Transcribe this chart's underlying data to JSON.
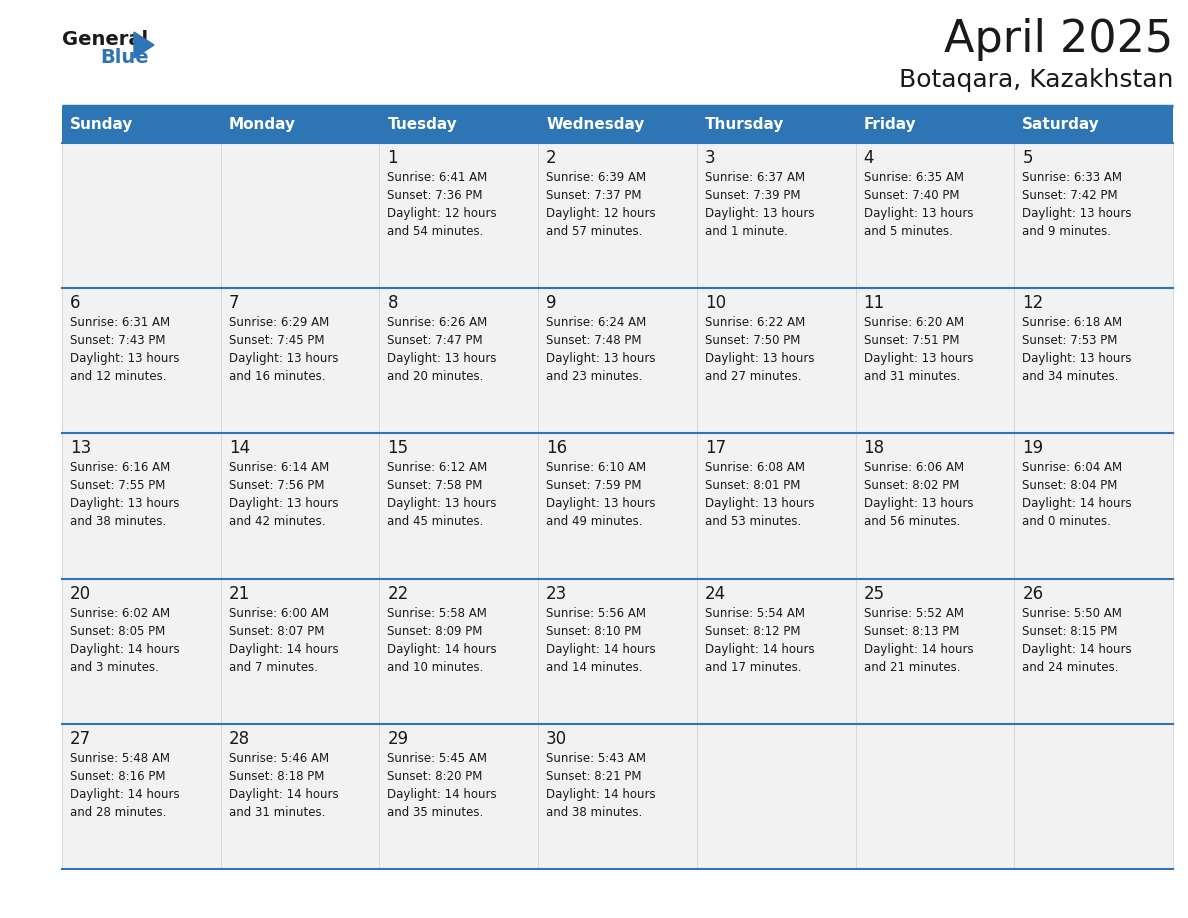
{
  "title": "April 2025",
  "subtitle": "Botaqara, Kazakhstan",
  "days_of_week": [
    "Sunday",
    "Monday",
    "Tuesday",
    "Wednesday",
    "Thursday",
    "Friday",
    "Saturday"
  ],
  "header_bg": "#2E75B6",
  "header_text": "#FFFFFF",
  "cell_bg": "#F2F2F2",
  "cell_bg_white": "#FFFFFF",
  "border_color": "#2E75B6",
  "day_num_color": "#1a1a1a",
  "cell_text_color": "#1a1a1a",
  "weeks": [
    [
      {
        "day": "",
        "sunrise": "",
        "sunset": "",
        "daylight": ""
      },
      {
        "day": "",
        "sunrise": "",
        "sunset": "",
        "daylight": ""
      },
      {
        "day": "1",
        "sunrise": "Sunrise: 6:41 AM",
        "sunset": "Sunset: 7:36 PM",
        "daylight": "Daylight: 12 hours\nand 54 minutes."
      },
      {
        "day": "2",
        "sunrise": "Sunrise: 6:39 AM",
        "sunset": "Sunset: 7:37 PM",
        "daylight": "Daylight: 12 hours\nand 57 minutes."
      },
      {
        "day": "3",
        "sunrise": "Sunrise: 6:37 AM",
        "sunset": "Sunset: 7:39 PM",
        "daylight": "Daylight: 13 hours\nand 1 minute."
      },
      {
        "day": "4",
        "sunrise": "Sunrise: 6:35 AM",
        "sunset": "Sunset: 7:40 PM",
        "daylight": "Daylight: 13 hours\nand 5 minutes."
      },
      {
        "day": "5",
        "sunrise": "Sunrise: 6:33 AM",
        "sunset": "Sunset: 7:42 PM",
        "daylight": "Daylight: 13 hours\nand 9 minutes."
      }
    ],
    [
      {
        "day": "6",
        "sunrise": "Sunrise: 6:31 AM",
        "sunset": "Sunset: 7:43 PM",
        "daylight": "Daylight: 13 hours\nand 12 minutes."
      },
      {
        "day": "7",
        "sunrise": "Sunrise: 6:29 AM",
        "sunset": "Sunset: 7:45 PM",
        "daylight": "Daylight: 13 hours\nand 16 minutes."
      },
      {
        "day": "8",
        "sunrise": "Sunrise: 6:26 AM",
        "sunset": "Sunset: 7:47 PM",
        "daylight": "Daylight: 13 hours\nand 20 minutes."
      },
      {
        "day": "9",
        "sunrise": "Sunrise: 6:24 AM",
        "sunset": "Sunset: 7:48 PM",
        "daylight": "Daylight: 13 hours\nand 23 minutes."
      },
      {
        "day": "10",
        "sunrise": "Sunrise: 6:22 AM",
        "sunset": "Sunset: 7:50 PM",
        "daylight": "Daylight: 13 hours\nand 27 minutes."
      },
      {
        "day": "11",
        "sunrise": "Sunrise: 6:20 AM",
        "sunset": "Sunset: 7:51 PM",
        "daylight": "Daylight: 13 hours\nand 31 minutes."
      },
      {
        "day": "12",
        "sunrise": "Sunrise: 6:18 AM",
        "sunset": "Sunset: 7:53 PM",
        "daylight": "Daylight: 13 hours\nand 34 minutes."
      }
    ],
    [
      {
        "day": "13",
        "sunrise": "Sunrise: 6:16 AM",
        "sunset": "Sunset: 7:55 PM",
        "daylight": "Daylight: 13 hours\nand 38 minutes."
      },
      {
        "day": "14",
        "sunrise": "Sunrise: 6:14 AM",
        "sunset": "Sunset: 7:56 PM",
        "daylight": "Daylight: 13 hours\nand 42 minutes."
      },
      {
        "day": "15",
        "sunrise": "Sunrise: 6:12 AM",
        "sunset": "Sunset: 7:58 PM",
        "daylight": "Daylight: 13 hours\nand 45 minutes."
      },
      {
        "day": "16",
        "sunrise": "Sunrise: 6:10 AM",
        "sunset": "Sunset: 7:59 PM",
        "daylight": "Daylight: 13 hours\nand 49 minutes."
      },
      {
        "day": "17",
        "sunrise": "Sunrise: 6:08 AM",
        "sunset": "Sunset: 8:01 PM",
        "daylight": "Daylight: 13 hours\nand 53 minutes."
      },
      {
        "day": "18",
        "sunrise": "Sunrise: 6:06 AM",
        "sunset": "Sunset: 8:02 PM",
        "daylight": "Daylight: 13 hours\nand 56 minutes."
      },
      {
        "day": "19",
        "sunrise": "Sunrise: 6:04 AM",
        "sunset": "Sunset: 8:04 PM",
        "daylight": "Daylight: 14 hours\nand 0 minutes."
      }
    ],
    [
      {
        "day": "20",
        "sunrise": "Sunrise: 6:02 AM",
        "sunset": "Sunset: 8:05 PM",
        "daylight": "Daylight: 14 hours\nand 3 minutes."
      },
      {
        "day": "21",
        "sunrise": "Sunrise: 6:00 AM",
        "sunset": "Sunset: 8:07 PM",
        "daylight": "Daylight: 14 hours\nand 7 minutes."
      },
      {
        "day": "22",
        "sunrise": "Sunrise: 5:58 AM",
        "sunset": "Sunset: 8:09 PM",
        "daylight": "Daylight: 14 hours\nand 10 minutes."
      },
      {
        "day": "23",
        "sunrise": "Sunrise: 5:56 AM",
        "sunset": "Sunset: 8:10 PM",
        "daylight": "Daylight: 14 hours\nand 14 minutes."
      },
      {
        "day": "24",
        "sunrise": "Sunrise: 5:54 AM",
        "sunset": "Sunset: 8:12 PM",
        "daylight": "Daylight: 14 hours\nand 17 minutes."
      },
      {
        "day": "25",
        "sunrise": "Sunrise: 5:52 AM",
        "sunset": "Sunset: 8:13 PM",
        "daylight": "Daylight: 14 hours\nand 21 minutes."
      },
      {
        "day": "26",
        "sunrise": "Sunrise: 5:50 AM",
        "sunset": "Sunset: 8:15 PM",
        "daylight": "Daylight: 14 hours\nand 24 minutes."
      }
    ],
    [
      {
        "day": "27",
        "sunrise": "Sunrise: 5:48 AM",
        "sunset": "Sunset: 8:16 PM",
        "daylight": "Daylight: 14 hours\nand 28 minutes."
      },
      {
        "day": "28",
        "sunrise": "Sunrise: 5:46 AM",
        "sunset": "Sunset: 8:18 PM",
        "daylight": "Daylight: 14 hours\nand 31 minutes."
      },
      {
        "day": "29",
        "sunrise": "Sunrise: 5:45 AM",
        "sunset": "Sunset: 8:20 PM",
        "daylight": "Daylight: 14 hours\nand 35 minutes."
      },
      {
        "day": "30",
        "sunrise": "Sunrise: 5:43 AM",
        "sunset": "Sunset: 8:21 PM",
        "daylight": "Daylight: 14 hours\nand 38 minutes."
      },
      {
        "day": "",
        "sunrise": "",
        "sunset": "",
        "daylight": ""
      },
      {
        "day": "",
        "sunrise": "",
        "sunset": "",
        "daylight": ""
      },
      {
        "day": "",
        "sunrise": "",
        "sunset": "",
        "daylight": ""
      }
    ]
  ]
}
